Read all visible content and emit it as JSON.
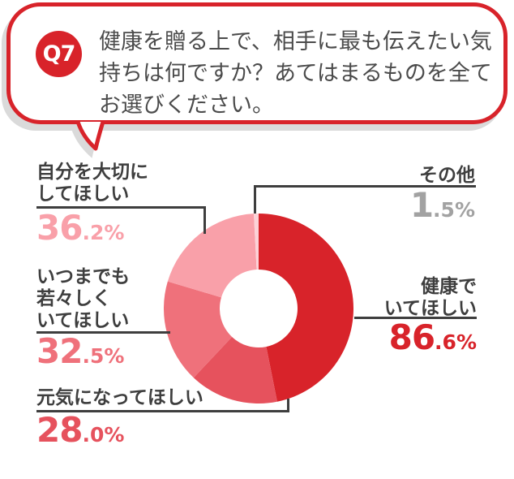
{
  "colors": {
    "brand_red": "#d8232a",
    "shadow_gray": "#dadada",
    "label_dark": "#3e3e3e",
    "leader_line": "#3e3e3e",
    "question_text": "#4b4b4b",
    "other_gray": "#a2a2a2"
  },
  "bubble": {
    "badge_label": "Q7",
    "question_lines": [
      "健康を贈る上で、相手に最も伝えたい気",
      "持ちは何ですか？あてはまるものを全て",
      "お選びください。"
    ]
  },
  "chart_data": {
    "type": "pie",
    "subtype": "donut",
    "title": "健康を贈る上で、相手に最も伝えたい気持ちは何ですか？あてはまるものを全てお選びください。",
    "categories": [
      "健康でいてほしい",
      "元気になってほしい",
      "いつまでも若々しくいてほしい",
      "自分を大切にしてほしい",
      "その他"
    ],
    "values": [
      86.6,
      28.0,
      32.5,
      36.2,
      1.5
    ],
    "unit": "%",
    "colors": [
      "#d8232a",
      "#e6525d",
      "#ef717b",
      "#f9a0a9",
      "#fcd2d7"
    ],
    "start_angle_deg": 0,
    "clockwise": true,
    "inner_radius_ratio": 0.41,
    "legend_position": "callouts"
  },
  "callouts": [
    {
      "id": "kenkou",
      "lines": [
        "健康で",
        "いてほしい"
      ],
      "pct_int": "86",
      "pct_dec": ".6%",
      "color": "#d8232a"
    },
    {
      "id": "genki",
      "lines": [
        "元気になってほしい"
      ],
      "pct_int": "28",
      "pct_dec": ".0%",
      "color": "#e6525d"
    },
    {
      "id": "itsumademo",
      "lines": [
        "いつまでも",
        "若々しく",
        "いてほしい"
      ],
      "pct_int": "32",
      "pct_dec": ".5%",
      "color": "#ef717b"
    },
    {
      "id": "jibun",
      "lines": [
        "自分を大切に",
        "してほしい"
      ],
      "pct_int": "36",
      "pct_dec": ".2%",
      "color": "#f9a0a9"
    },
    {
      "id": "sonota",
      "lines": [
        "その他"
      ],
      "pct_int": "1",
      "pct_dec": ".5%",
      "color": "#a2a2a2"
    }
  ]
}
